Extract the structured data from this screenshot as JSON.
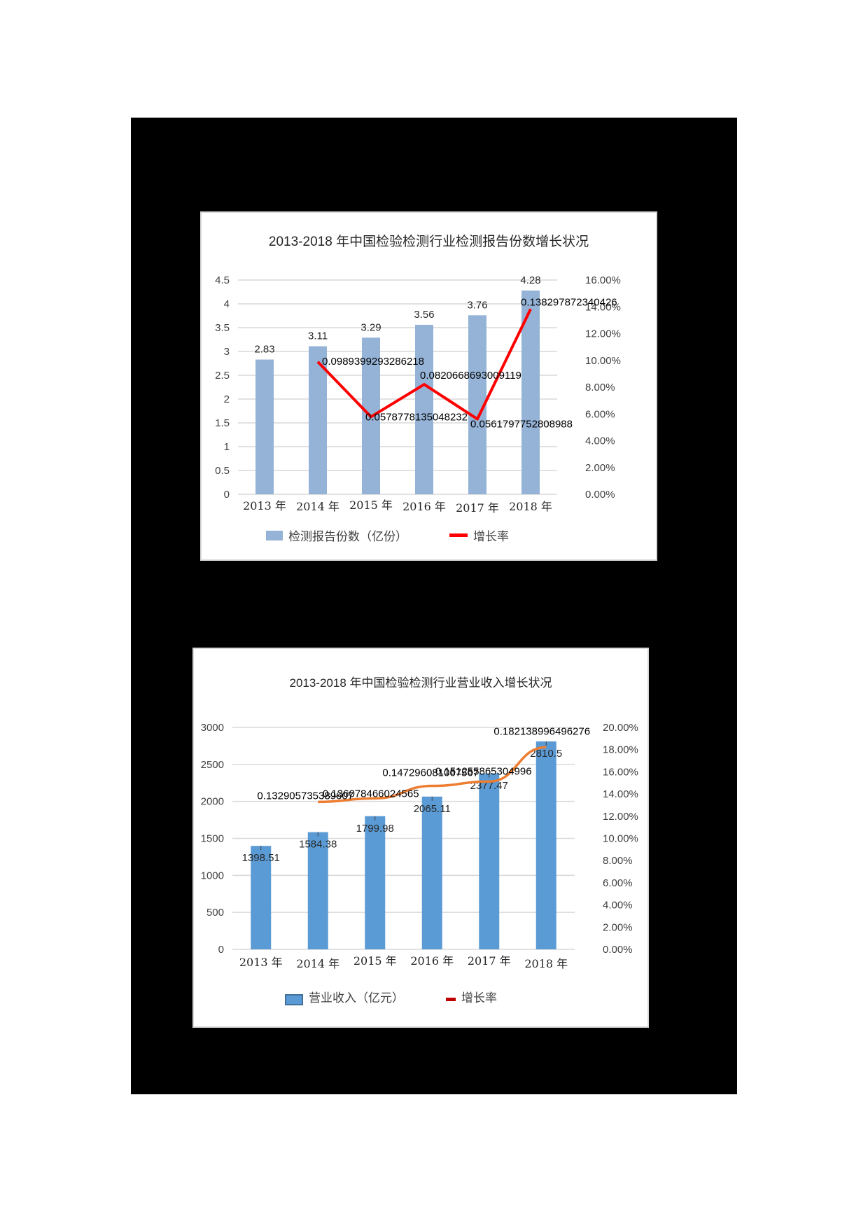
{
  "page": {
    "background": "#ffffff",
    "frame_color": "#000000"
  },
  "chart_data": [
    {
      "type": "bar+line",
      "title": "2013-2018 年中国检验检测行业检测报告份数增长状况",
      "categories": [
        "2013 年",
        "2014 年",
        "2015 年",
        "2016 年",
        "2017 年",
        "2018 年"
      ],
      "series": [
        {
          "name": "检测报告份数（亿份）",
          "type": "bar",
          "axis": "left",
          "color": "#95b3d7",
          "values": [
            2.83,
            3.11,
            3.29,
            3.56,
            3.76,
            4.28
          ],
          "labels": [
            "2.83",
            "3.11",
            "3.29",
            "3.56",
            "3.76",
            "4.28"
          ]
        },
        {
          "name": "增长率",
          "type": "line",
          "axis": "right",
          "color": "#ff0000",
          "values": [
            null,
            0.0989399293286218,
            0.0578778135048232,
            0.0820668693009119,
            0.0561797752808988,
            0.138297872340426
          ],
          "labels": [
            "",
            "0.0989399293286218",
            "0.0578778135048232",
            "0.0820668693009119",
            "0.0561797752808988",
            "0.138297872340426"
          ]
        }
      ],
      "left_axis": {
        "min": 0,
        "max": 4.5,
        "ticks": [
          "0",
          "0.5",
          "1",
          "1.5",
          "2",
          "2.5",
          "3",
          "3.5",
          "4",
          "4.5"
        ]
      },
      "right_axis": {
        "min": 0,
        "max": 0.16,
        "ticks": [
          "0.00%",
          "2.00%",
          "4.00%",
          "6.00%",
          "8.00%",
          "10.00%",
          "12.00%",
          "14.00%",
          "16.00%"
        ]
      },
      "grid": true,
      "legend_position": "bottom"
    },
    {
      "type": "bar+line",
      "title": "2013-2018 年中国检验检测行业营业收入增长状况",
      "categories": [
        "2013 年",
        "2014 年",
        "2015 年",
        "2016 年",
        "2017 年",
        "2018 年"
      ],
      "series": [
        {
          "name": "营业收入（亿元）",
          "type": "bar",
          "axis": "left",
          "color": "#5b9bd5",
          "values": [
            1398.51,
            1584.38,
            1799.98,
            2065.11,
            2377.47,
            2810.5
          ],
          "labels": [
            "1398.51",
            "1584.38",
            "1799.98",
            "2065.11",
            "2377.47",
            "2810.5"
          ]
        },
        {
          "name": "增长率",
          "type": "line",
          "axis": "right",
          "color": "#ed7d31",
          "legend_color": "#c00000",
          "values": [
            null,
            0.132905735389607,
            0.136078466024565,
            0.147296081067567,
            0.151255865304996,
            0.182138996496276
          ],
          "labels": [
            "",
            "0.132905735389607",
            "0.136078466024565",
            "0.147296081067567",
            "0.151255865304996",
            "0.182138996496276"
          ]
        }
      ],
      "left_axis": {
        "min": 0,
        "max": 3000,
        "ticks": [
          "0",
          "500",
          "1000",
          "1500",
          "2000",
          "2500",
          "3000"
        ]
      },
      "right_axis": {
        "min": 0,
        "max": 0.2,
        "ticks": [
          "0.00%",
          "2.00%",
          "4.00%",
          "6.00%",
          "8.00%",
          "10.00%",
          "12.00%",
          "14.00%",
          "16.00%",
          "18.00%",
          "20.00%"
        ]
      },
      "grid": true,
      "legend_position": "bottom"
    }
  ],
  "chart1": {
    "title": "2013-2018 年中国检验检测行业检测报告份数增长状况",
    "legend_bar": "检测报告份数（亿份）",
    "legend_line": "增长率"
  },
  "chart2": {
    "title": "2013-2018 年中国检验检测行业营业收入增长状况",
    "legend_bar": "营业收入（亿元）",
    "legend_line": "增长率"
  }
}
